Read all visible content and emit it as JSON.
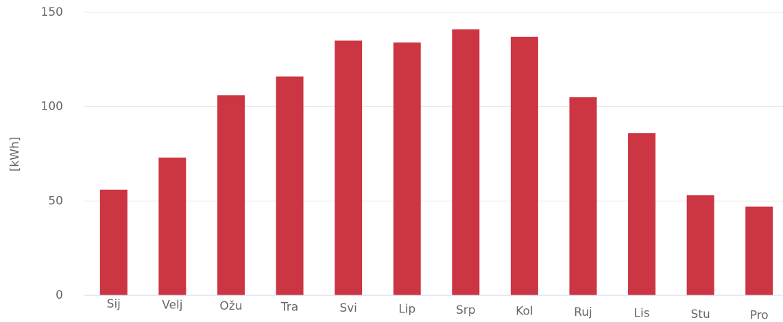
{
  "chart_data": {
    "type": "bar",
    "y_label": "[kWh]",
    "categories": [
      "Sij",
      "Velj",
      "Ožu",
      "Tra",
      "Svi",
      "Lip",
      "Srp",
      "Kol",
      "Ruj",
      "Lis",
      "Stu",
      "Pro"
    ],
    "values": [
      56,
      73,
      106,
      116,
      135,
      134,
      141,
      137,
      105,
      86,
      53,
      47
    ],
    "color": "#cc3542",
    "ylim": [
      0,
      150
    ],
    "yticks": [
      0,
      50,
      100,
      150
    ],
    "grid": true
  }
}
